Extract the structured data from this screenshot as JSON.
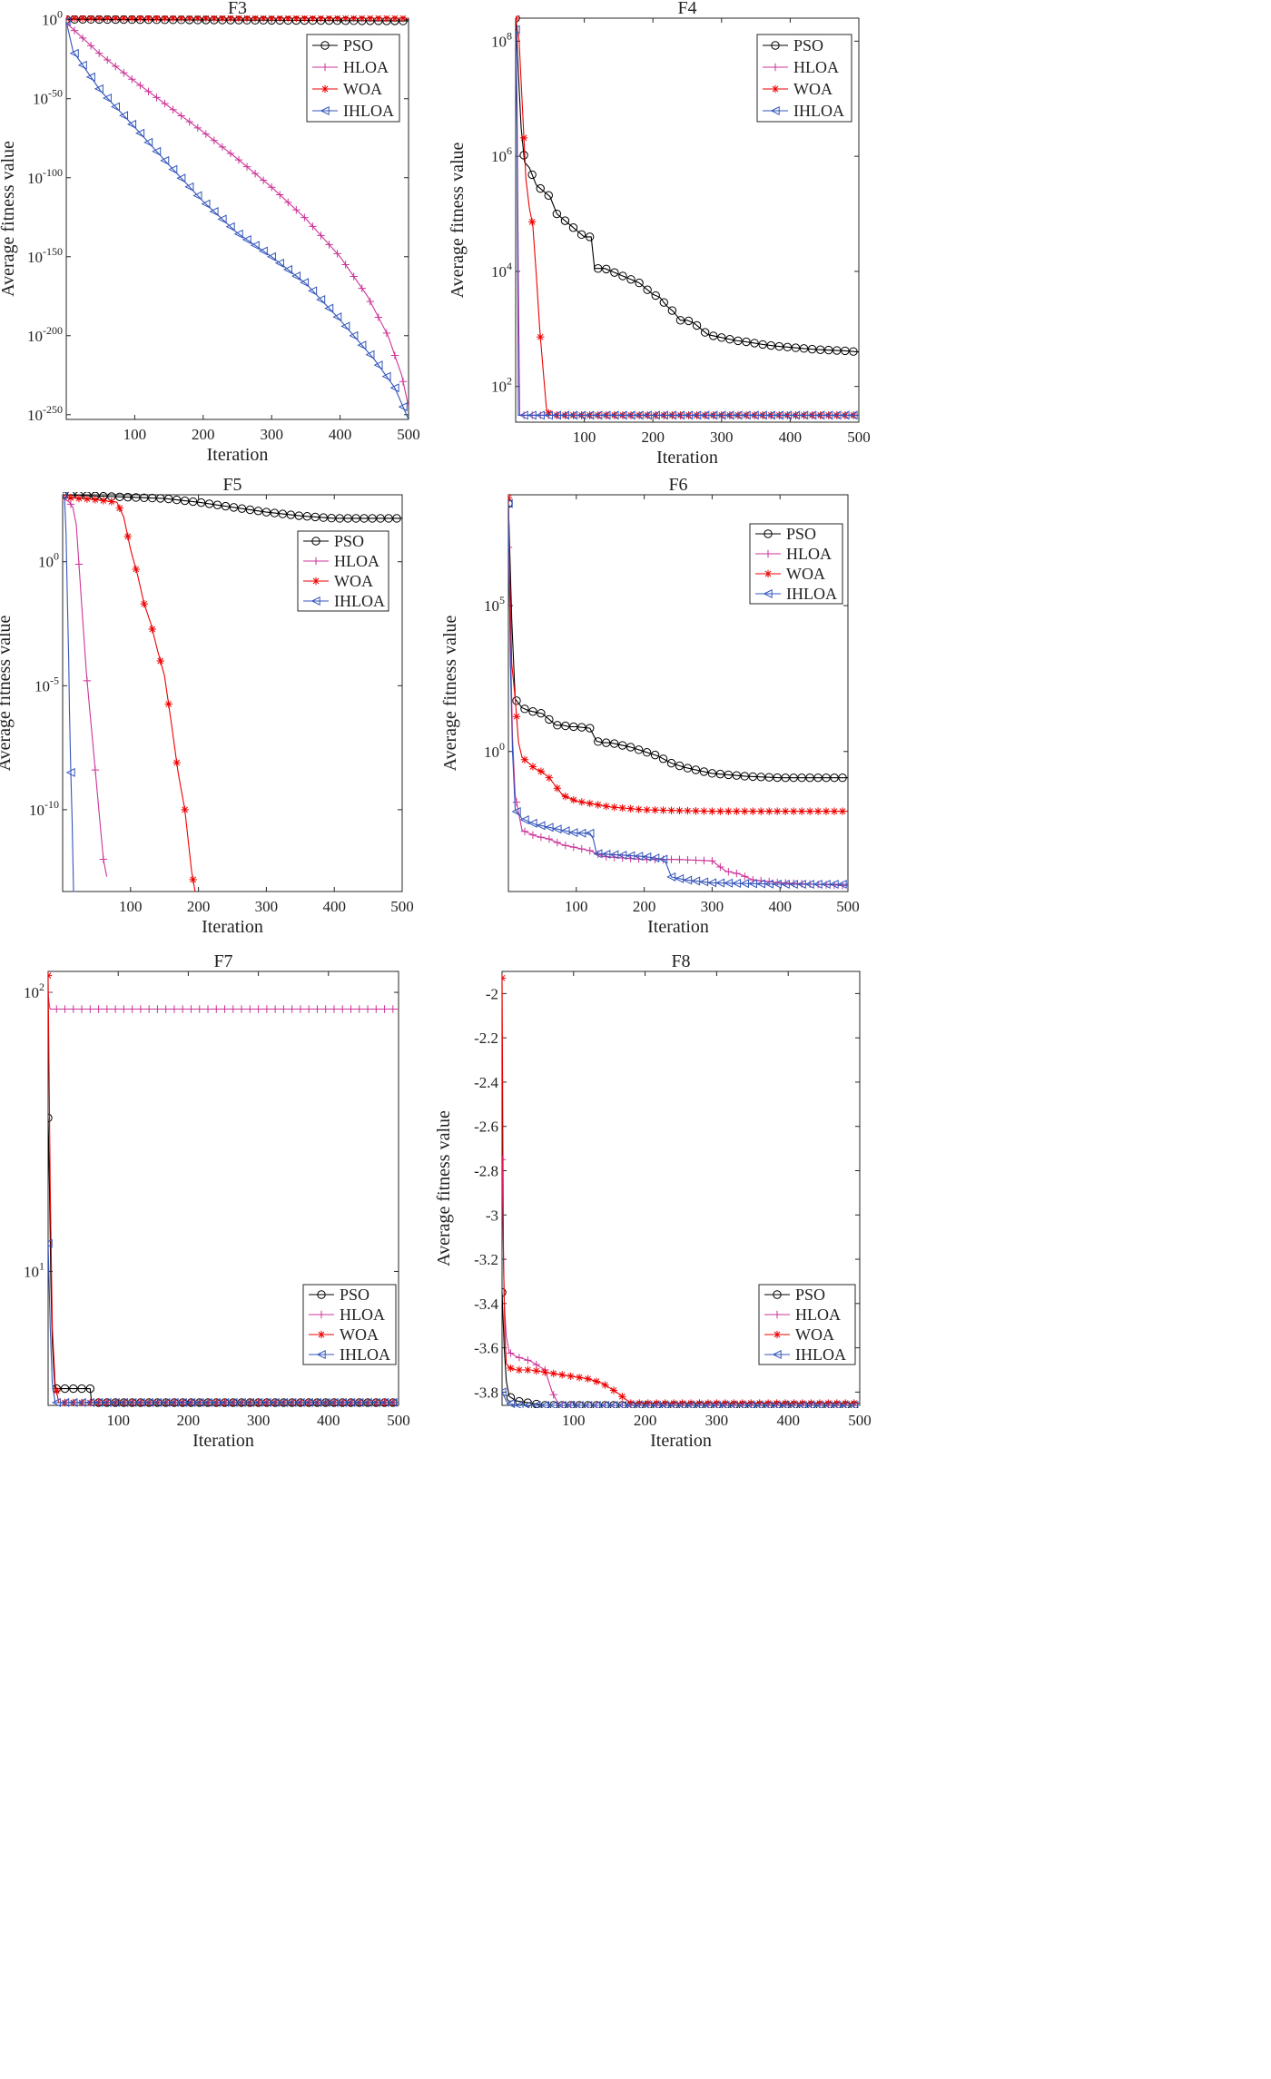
{
  "figure": {
    "xlabel": "Iteration",
    "ylabel": "Average fitness value"
  },
  "chart_data": [
    {
      "id": "F3",
      "type": "line",
      "title": "F3",
      "yscale": "log",
      "xlabel": "Iteration",
      "ylabel": "Average fitness value",
      "xlim": [
        0,
        500
      ],
      "ylim_exp": [
        -253,
        1
      ],
      "xticks": [
        100,
        200,
        300,
        400,
        500
      ],
      "yticks": [
        {
          "v": 0,
          "label": "10^0"
        },
        {
          "v": -50,
          "label": "10^-50"
        },
        {
          "v": -100,
          "label": "10^-100"
        },
        {
          "v": -150,
          "label": "10^-150"
        },
        {
          "v": -200,
          "label": "10^-200"
        },
        {
          "v": -250,
          "label": "10^-250"
        }
      ],
      "legend": [
        "PSO",
        "HLOA",
        "WOA",
        "IHLOA"
      ],
      "legend_position": "top-right",
      "series": [
        {
          "name": "PSO",
          "color": "#000000",
          "marker": "circle",
          "x": [
            0,
            500
          ],
          "y": [
            0.3,
            -0.8
          ]
        },
        {
          "name": "HLOA",
          "color": "#cc3399",
          "marker": "plus",
          "x": [
            0,
            50,
            100,
            150,
            200,
            250,
            300,
            350,
            400,
            440,
            470,
            490,
            500
          ],
          "y": [
            -2,
            -22,
            -39,
            -55,
            -71,
            -88,
            -106,
            -126,
            -150,
            -175,
            -200,
            -225,
            -245
          ]
        },
        {
          "name": "WOA",
          "color": "#ee0000",
          "marker": "star",
          "x": [
            0,
            500
          ],
          "y": [
            1,
            1
          ]
        },
        {
          "name": "IHLOA",
          "color": "#3355bb",
          "marker": "triangle-left",
          "x": [
            0,
            10,
            50,
            100,
            150,
            200,
            250,
            300,
            350,
            400,
            450,
            480,
            500
          ],
          "y": [
            -1,
            -20,
            -45,
            -68,
            -92,
            -115,
            -135,
            -150,
            -167,
            -190,
            -215,
            -233,
            -253
          ]
        }
      ]
    },
    {
      "id": "F4",
      "type": "line",
      "title": "F4",
      "yscale": "log",
      "xlabel": "Iteration",
      "ylabel": "Average fitness value",
      "xlim": [
        0,
        500
      ],
      "ylim_exp": [
        1.38,
        8.4
      ],
      "xticks": [
        100,
        200,
        300,
        400,
        500
      ],
      "yticks": [
        {
          "v": 2,
          "label": "10^2"
        },
        {
          "v": 4,
          "label": "10^4"
        },
        {
          "v": 6,
          "label": "10^6"
        },
        {
          "v": 8,
          "label": "10^8"
        }
      ],
      "legend": [
        "PSO",
        "HLOA",
        "WOA",
        "IHLOA"
      ],
      "legend_position": "top-right",
      "series": [
        {
          "name": "PSO",
          "color": "#000000",
          "marker": "circle",
          "x": [
            0,
            5,
            8,
            13,
            20,
            30,
            40,
            50,
            60,
            70,
            80,
            90,
            100,
            110,
            115,
            120,
            130,
            140,
            150,
            160,
            170,
            180,
            190,
            200,
            210,
            220,
            230,
            240,
            250,
            260,
            270,
            280,
            300,
            320,
            340,
            360,
            380,
            400,
            420,
            440,
            460,
            480,
            500
          ],
          "y": [
            8.4,
            7.2,
            6.5,
            5.9,
            5.8,
            5.5,
            5.4,
            5.3,
            5.0,
            4.9,
            4.8,
            4.7,
            4.6,
            4.6,
            4.05,
            4.05,
            4.05,
            4.0,
            3.95,
            3.9,
            3.85,
            3.8,
            3.7,
            3.6,
            3.55,
            3.4,
            3.3,
            3.15,
            3.15,
            3.1,
            3.0,
            2.9,
            2.85,
            2.8,
            2.77,
            2.73,
            2.7,
            2.68,
            2.66,
            2.64,
            2.63,
            2.62,
            2.6
          ]
        },
        {
          "name": "HLOA",
          "color": "#cc3399",
          "marker": "plus",
          "x": [
            0,
            2,
            4,
            6,
            500
          ],
          "y": [
            8.1,
            7.0,
            3.8,
            1.5,
            1.5
          ]
        },
        {
          "name": "WOA",
          "color": "#ee0000",
          "marker": "star",
          "x": [
            0,
            5,
            10,
            15,
            20,
            25,
            30,
            35,
            40,
            45,
            50,
            60,
            500
          ],
          "y": [
            8.4,
            8.0,
            6.8,
            5.6,
            5.1,
            4.8,
            3.95,
            3.0,
            2.3,
            1.6,
            1.5,
            1.5,
            1.5
          ]
        },
        {
          "name": "IHLOA",
          "color": "#3355bb",
          "marker": "triangle-left",
          "x": [
            0,
            2,
            4,
            500
          ],
          "y": [
            8.2,
            6.5,
            1.5,
            1.5
          ]
        }
      ]
    },
    {
      "id": "F5",
      "type": "line",
      "title": "F5",
      "yscale": "log",
      "xlabel": "Iteration",
      "ylabel": "Average fitness value",
      "xlim": [
        0,
        500
      ],
      "ylim_exp": [
        -13.3,
        2.7
      ],
      "xticks": [
        100,
        200,
        300,
        400,
        500
      ],
      "yticks": [
        {
          "v": 0,
          "label": "10^0"
        },
        {
          "v": -5,
          "label": "10^-5"
        },
        {
          "v": -10,
          "label": "10^-10"
        }
      ],
      "legend": [
        "PSO",
        "HLOA",
        "WOA",
        "IHLOA"
      ],
      "legend_position": "top-right",
      "series": [
        {
          "name": "PSO",
          "color": "#000000",
          "marker": "circle",
          "x": [
            0,
            100,
            150,
            200,
            250,
            300,
            350,
            400,
            450,
            500
          ],
          "y": [
            2.7,
            2.6,
            2.55,
            2.4,
            2.2,
            2.0,
            1.85,
            1.75,
            1.75,
            1.75
          ]
        },
        {
          "name": "HLOA",
          "color": "#cc3399",
          "marker": "plus",
          "x": [
            0,
            5,
            10,
            15,
            20,
            25,
            30,
            35,
            40,
            45,
            50,
            55,
            60,
            65
          ],
          "y": [
            2.6,
            2.5,
            2.4,
            2.2,
            1.5,
            -0.5,
            -2.5,
            -4.5,
            -6,
            -7.5,
            -9,
            -10.5,
            -12,
            -12.7
          ]
        },
        {
          "name": "WOA",
          "color": "#ee0000",
          "marker": "star",
          "x": [
            0,
            50,
            80,
            90,
            100,
            110,
            120,
            130,
            140,
            150,
            160,
            170,
            180,
            190,
            195
          ],
          "y": [
            2.6,
            2.5,
            2.4,
            1.8,
            0.5,
            -0.5,
            -1.7,
            -2.5,
            -3.6,
            -4.6,
            -6.5,
            -8.5,
            -10,
            -12.5,
            -13.3
          ]
        },
        {
          "name": "IHLOA",
          "color": "#3355bb",
          "marker": "triangle-left",
          "x": [
            0,
            3,
            5,
            7,
            9,
            10,
            12,
            14,
            16,
            18
          ],
          "y": [
            2.7,
            2.5,
            1.2,
            -1.5,
            -4,
            -6,
            -8.5,
            -10.5,
            -13.3,
            -13.3
          ]
        }
      ]
    },
    {
      "id": "F6",
      "type": "line",
      "title": "F6",
      "yscale": "log",
      "xlabel": "Iteration",
      "ylabel": "Average fitness value",
      "xlim": [
        0,
        500
      ],
      "ylim_exp": [
        -4.8,
        8.8
      ],
      "xticks": [
        100,
        200,
        300,
        400,
        500
      ],
      "yticks": [
        {
          "v": 0,
          "label": "10^0"
        },
        {
          "v": 5,
          "label": "10^5"
        }
      ],
      "legend": [
        "PSO",
        "HLOA",
        "WOA",
        "IHLOA"
      ],
      "legend_position": "top-right",
      "series": [
        {
          "name": "PSO",
          "color": "#000000",
          "marker": "circle",
          "x": [
            0,
            5,
            10,
            20,
            30,
            40,
            50,
            60,
            70,
            80,
            90,
            100,
            120,
            130,
            140,
            150,
            160,
            180,
            200,
            220,
            240,
            260,
            300,
            350,
            400,
            450,
            500
          ],
          "y": [
            8.5,
            4.5,
            1.8,
            1.5,
            1.4,
            1.35,
            1.3,
            1.1,
            0.9,
            0.9,
            0.85,
            0.85,
            0.8,
            0.35,
            0.3,
            0.3,
            0.25,
            0.15,
            0.0,
            -0.15,
            -0.4,
            -0.55,
            -0.75,
            -0.85,
            -0.9,
            -0.9,
            -0.9
          ]
        },
        {
          "name": "HLOA",
          "color": "#cc3399",
          "marker": "plus",
          "x": [
            0,
            3,
            6,
            10,
            20,
            40,
            60,
            80,
            100,
            120,
            140,
            200,
            250,
            300,
            320,
            340,
            360,
            400,
            450,
            500
          ],
          "y": [
            7,
            4,
            0.5,
            -1.5,
            -2.7,
            -2.9,
            -3.0,
            -3.2,
            -3.3,
            -3.4,
            -3.6,
            -3.7,
            -3.7,
            -3.75,
            -4.1,
            -4.2,
            -4.4,
            -4.5,
            -4.55,
            -4.6
          ]
        },
        {
          "name": "WOA",
          "color": "#ee0000",
          "marker": "star",
          "x": [
            0,
            2,
            5,
            10,
            15,
            20,
            30,
            40,
            50,
            60,
            70,
            80,
            100,
            150,
            200,
            300,
            400,
            500
          ],
          "y": [
            8.7,
            6,
            3,
            1.8,
            0.3,
            -0.2,
            -0.4,
            -0.6,
            -0.7,
            -0.9,
            -1.2,
            -1.5,
            -1.7,
            -1.9,
            -2.0,
            -2.05,
            -2.05,
            -2.05
          ]
        },
        {
          "name": "IHLOA",
          "color": "#3355bb",
          "marker": "triangle-left",
          "x": [
            0,
            3,
            6,
            10,
            20,
            40,
            60,
            80,
            100,
            120,
            125,
            130,
            200,
            230,
            240,
            260,
            300,
            400,
            500
          ],
          "y": [
            8.5,
            3,
            0,
            -2,
            -2.3,
            -2.5,
            -2.6,
            -2.7,
            -2.8,
            -2.8,
            -3.0,
            -3.5,
            -3.6,
            -3.7,
            -4.3,
            -4.4,
            -4.5,
            -4.55,
            -4.55
          ]
        }
      ]
    },
    {
      "id": "F7",
      "type": "line",
      "title": "F7",
      "yscale": "log",
      "xlabel": "Iteration",
      "ylabel": "Average fitness value",
      "xlim": [
        0,
        500
      ],
      "ylim_exp": [
        0.52,
        2.075
      ],
      "xticks": [
        100,
        200,
        300,
        400,
        500
      ],
      "yticks": [
        {
          "v": 1,
          "label": "10^1"
        },
        {
          "v": 2,
          "label": "10^2"
        }
      ],
      "legend": [
        "PSO",
        "HLOA",
        "WOA",
        "IHLOA"
      ],
      "legend_position": "bottom-right",
      "series": [
        {
          "name": "PSO",
          "color": "#000000",
          "marker": "circle",
          "x": [
            0,
            2,
            4,
            6,
            8,
            10,
            20,
            40,
            60,
            62,
            80,
            500
          ],
          "y": [
            1.55,
            1.3,
            0.95,
            0.75,
            0.65,
            0.58,
            0.58,
            0.58,
            0.58,
            0.53,
            0.53,
            0.53
          ]
        },
        {
          "name": "HLOA",
          "color": "#cc3399",
          "marker": "plus",
          "x": [
            0,
            1,
            2,
            3,
            500
          ],
          "y": [
            2.0,
            1.97,
            1.95,
            1.94,
            1.94
          ]
        },
        {
          "name": "WOA",
          "color": "#ee0000",
          "marker": "star",
          "x": [
            0,
            3,
            6,
            10,
            15,
            500
          ],
          "y": [
            2.06,
            1.3,
            0.8,
            0.6,
            0.53,
            0.53
          ]
        },
        {
          "name": "IHLOA",
          "color": "#3355bb",
          "marker": "triangle-left",
          "x": [
            0,
            3,
            6,
            10,
            500
          ],
          "y": [
            1.1,
            0.8,
            0.6,
            0.53,
            0.53
          ]
        }
      ]
    },
    {
      "id": "F8",
      "type": "line",
      "title": "F8",
      "yscale": "linear",
      "xlabel": "Iteration",
      "ylabel": "Average fitness value",
      "xlim": [
        0,
        500
      ],
      "ylim": [
        -3.86,
        -1.9
      ],
      "xticks": [
        100,
        200,
        300,
        400,
        500
      ],
      "yticks": [
        {
          "v": -2,
          "label": "-2"
        },
        {
          "v": -2.2,
          "label": "-2.2"
        },
        {
          "v": -2.4,
          "label": "-2.4"
        },
        {
          "v": -2.6,
          "label": "-2.6"
        },
        {
          "v": -2.8,
          "label": "-2.8"
        },
        {
          "v": -3,
          "label": "-3"
        },
        {
          "v": -3.2,
          "label": "-3.2"
        },
        {
          "v": -3.4,
          "label": "-3.4"
        },
        {
          "v": -3.6,
          "label": "-3.6"
        },
        {
          "v": -3.8,
          "label": "-3.8"
        }
      ],
      "legend": [
        "PSO",
        "HLOA",
        "WOA",
        "IHLOA"
      ],
      "legend_position": "bottom-right",
      "series": [
        {
          "name": "PSO",
          "color": "#000000",
          "marker": "circle",
          "x": [
            0,
            3,
            6,
            10,
            20,
            40,
            60,
            500
          ],
          "y": [
            -3.35,
            -3.6,
            -3.75,
            -3.82,
            -3.84,
            -3.85,
            -3.86,
            -3.86
          ]
        },
        {
          "name": "HLOA",
          "color": "#cc3399",
          "marker": "plus",
          "x": [
            0,
            3,
            6,
            10,
            20,
            40,
            60,
            70,
            80,
            500
          ],
          "y": [
            -2.75,
            -3.4,
            -3.55,
            -3.62,
            -3.64,
            -3.66,
            -3.7,
            -3.8,
            -3.86,
            -3.86
          ]
        },
        {
          "name": "WOA",
          "color": "#ee0000",
          "marker": "star",
          "x": [
            0,
            2,
            4,
            6,
            10,
            20,
            40,
            60,
            80,
            100,
            120,
            140,
            160,
            180,
            500
          ],
          "y": [
            -1.93,
            -3.2,
            -3.55,
            -3.67,
            -3.69,
            -3.7,
            -3.7,
            -3.71,
            -3.72,
            -3.73,
            -3.74,
            -3.76,
            -3.8,
            -3.85,
            -3.85
          ]
        },
        {
          "name": "IHLOA",
          "color": "#3355bb",
          "marker": "triangle-left",
          "x": [
            0,
            3,
            6,
            10,
            20,
            500
          ],
          "y": [
            -3.8,
            -3.82,
            -3.84,
            -3.85,
            -3.86,
            -3.86
          ]
        }
      ]
    }
  ]
}
